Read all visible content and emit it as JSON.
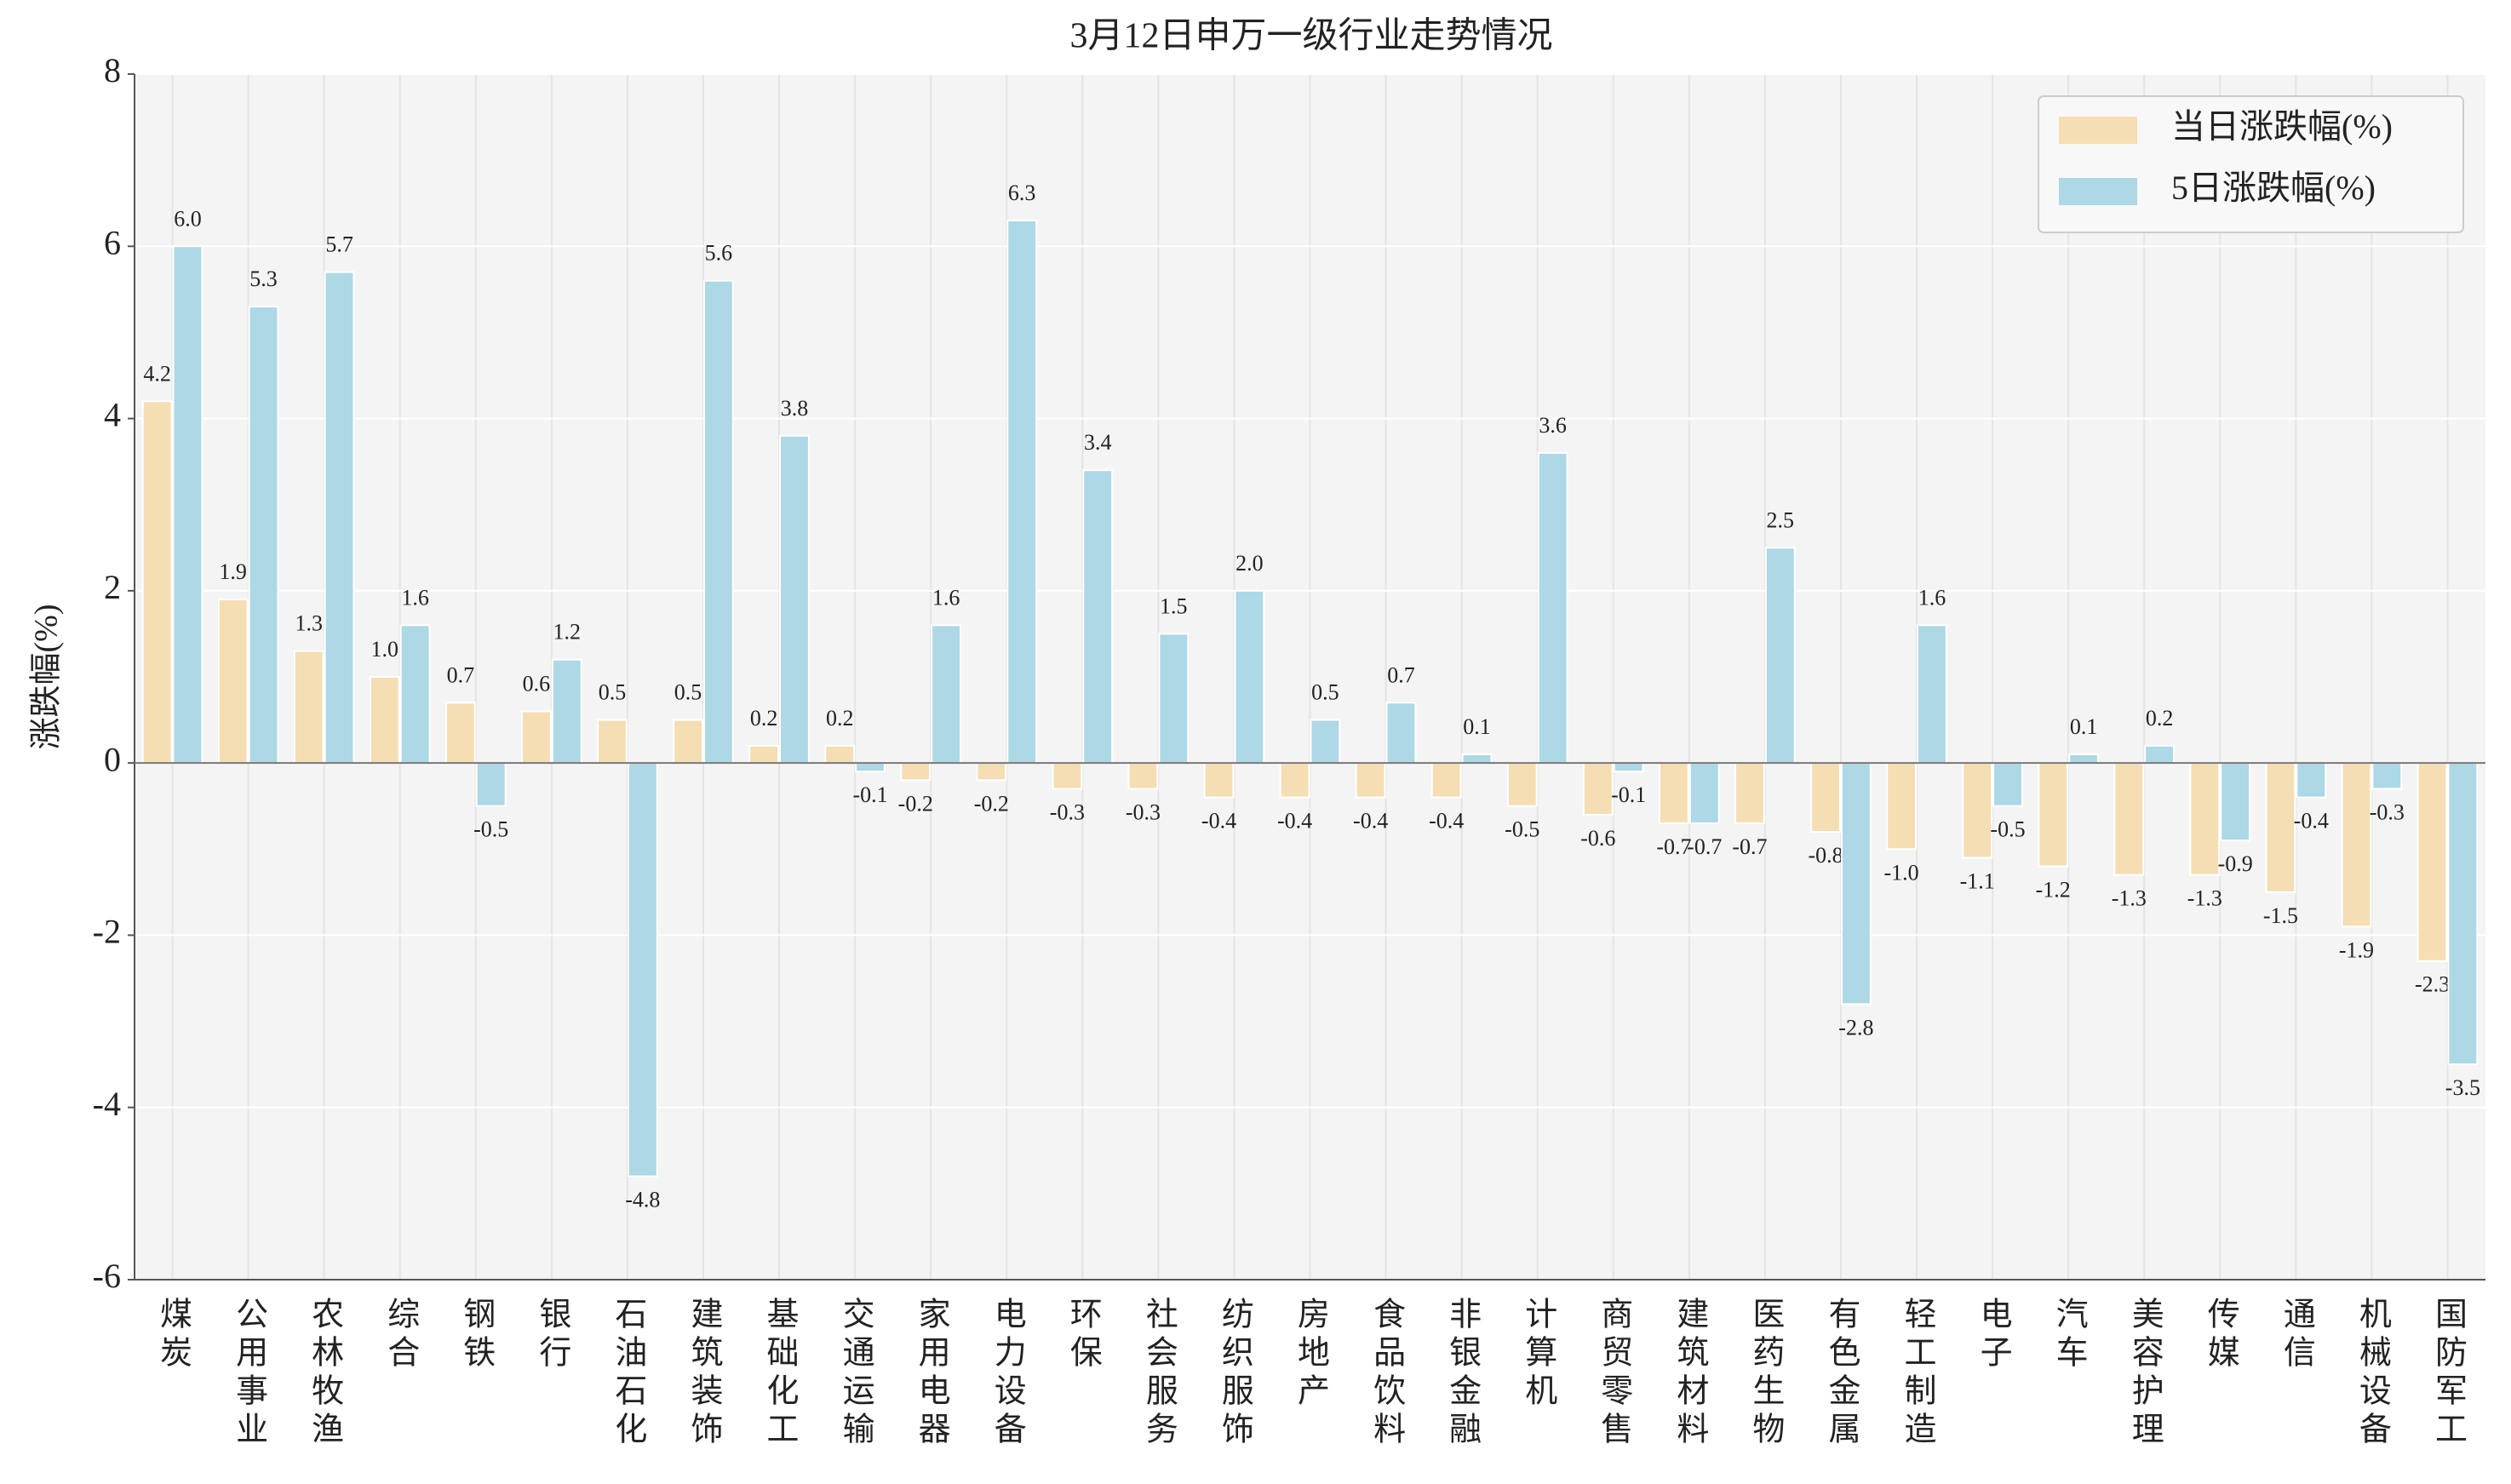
{
  "chart_data": {
    "type": "bar",
    "title": "3月12日申万一级行业走势情况",
    "y_label": "涨跌幅(%)",
    "categories": [
      "煤炭",
      "公用事业",
      "农林牧渔",
      "综合",
      "钢铁",
      "银行",
      "石油石化",
      "建筑装饰",
      "基础化工",
      "交通运输",
      "家用电器",
      "电力设备",
      "环保",
      "社会服务",
      "纺织服饰",
      "房地产",
      "食品饮料",
      "非银金融",
      "计算机",
      "商贸零售",
      "建筑材料",
      "医药生物",
      "有色金属",
      "轻工制造",
      "电子",
      "汽车",
      "美容护理",
      "传媒",
      "通信",
      "机械设备",
      "国防军工"
    ],
    "series": [
      {
        "name": "当日涨跌幅(%)",
        "color": "#f5deb3",
        "values": [
          4.2,
          1.9,
          1.3,
          1.0,
          0.7,
          0.6,
          0.5,
          0.5,
          0.2,
          0.2,
          -0.2,
          -0.2,
          -0.3,
          -0.3,
          -0.4,
          -0.4,
          -0.4,
          -0.4,
          -0.5,
          -0.6,
          -0.7,
          -0.7,
          -0.8,
          -1.0,
          -1.1,
          -1.2,
          -1.3,
          -1.3,
          -1.5,
          -1.9,
          -2.3
        ],
        "value_labels": [
          "4.2",
          "1.9",
          "1.3",
          "1.0",
          "0.7",
          "0.6",
          "0.5",
          "0.5",
          "0.2",
          "0.2",
          "-0.2",
          "-0.2",
          "-0.3",
          "-0.3",
          "-0.4",
          "-0.4",
          "-0.4",
          "-0.4",
          "-0.5",
          "-0.6",
          "-0.7",
          "-0.7",
          "-0.8",
          "-1.0",
          "-1.1",
          "-1.2",
          "-1.3",
          "-1.3",
          "-1.5",
          "-1.9",
          "-2.3"
        ]
      },
      {
        "name": "5日涨跌幅(%)",
        "color": "#add8e6",
        "values": [
          6.0,
          5.3,
          5.7,
          1.6,
          -0.5,
          1.2,
          -4.8,
          5.6,
          3.8,
          -0.1,
          1.6,
          6.3,
          3.4,
          1.5,
          2.0,
          0.5,
          0.7,
          0.1,
          3.6,
          -0.1,
          -0.7,
          2.5,
          -2.8,
          1.6,
          -0.5,
          0.1,
          0.2,
          -0.9,
          -0.4,
          -0.3,
          -3.5
        ],
        "value_labels": [
          "6.0",
          "5.3",
          "5.7",
          "1.6",
          "-0.5",
          "1.2",
          "-4.8",
          "5.6",
          "3.8",
          "-0.1",
          "1.6",
          "6.3",
          "3.4",
          "1.5",
          "2.0",
          "0.5",
          "0.7",
          "0.1",
          "3.6",
          "-0.1",
          "-0.7",
          "2.5",
          "-2.8",
          "1.6",
          "-0.5",
          "0.1",
          "0.2",
          "-0.9",
          "-0.4",
          "-0.3",
          "-3.5"
        ]
      }
    ],
    "ylim": [
      -6,
      8
    ],
    "yticks": [
      -6,
      -4,
      -2,
      0,
      2,
      4,
      6,
      8
    ],
    "grid": true,
    "legend": "upper right"
  }
}
